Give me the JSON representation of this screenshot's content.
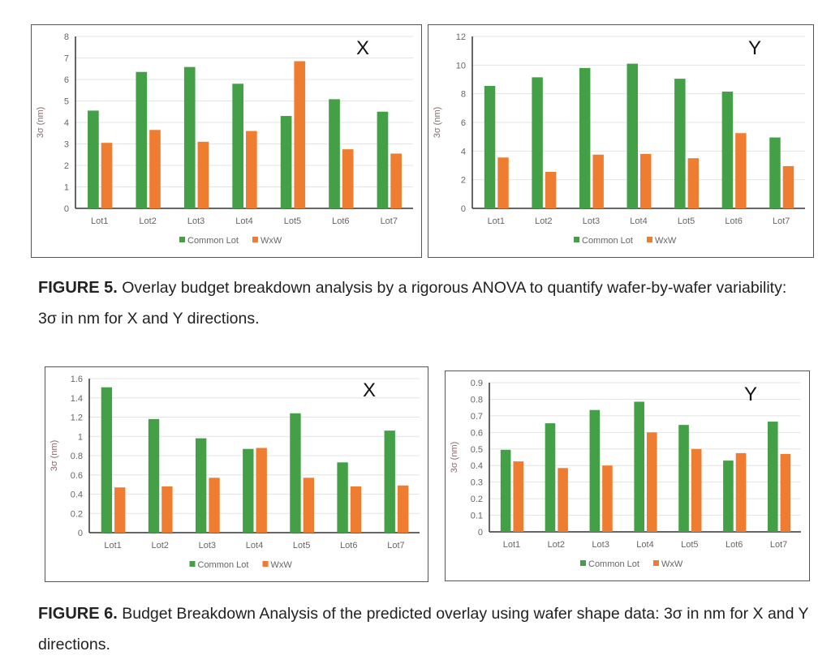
{
  "colors": {
    "common": "#43a047",
    "wxw": "#ee7d31",
    "grid": "#e4e4e4",
    "axis": "#333333",
    "tick_text": "#666666"
  },
  "chart_data": [
    {
      "type": "bar",
      "panel_label": "X",
      "ylabel": "3σ (nm)",
      "ylim": [
        0,
        8
      ],
      "yticks": [
        0,
        1,
        2,
        3,
        4,
        5,
        6,
        7,
        8
      ],
      "categories": [
        "Lot1",
        "Lot2",
        "Lot3",
        "Lot4",
        "Lot5",
        "Lot6",
        "Lot7"
      ],
      "grid": true,
      "legend": "bottom",
      "series": [
        {
          "name": "Common Lot",
          "values": [
            4.55,
            6.35,
            6.58,
            5.8,
            4.3,
            5.08,
            4.5
          ]
        },
        {
          "name": "WxW",
          "values": [
            3.05,
            3.65,
            3.1,
            3.6,
            6.85,
            2.75,
            2.55
          ]
        }
      ]
    },
    {
      "type": "bar",
      "panel_label": "Y",
      "ylabel": "3σ (nm)",
      "ylim": [
        0,
        12
      ],
      "yticks": [
        0,
        2,
        4,
        6,
        8,
        10,
        12
      ],
      "categories": [
        "Lot1",
        "Lot2",
        "Lot3",
        "Lot4",
        "Lot5",
        "Lot6",
        "Lot7"
      ],
      "grid": true,
      "legend": "bottom",
      "series": [
        {
          "name": "Common Lot",
          "values": [
            8.55,
            9.15,
            9.8,
            10.1,
            9.05,
            8.15,
            4.95
          ]
        },
        {
          "name": "WxW",
          "values": [
            3.55,
            2.55,
            3.75,
            3.8,
            3.5,
            5.25,
            2.95
          ]
        }
      ]
    },
    {
      "type": "bar",
      "panel_label": "X",
      "ylabel": "3σ (nm)",
      "ylim": [
        0,
        1.6
      ],
      "yticks": [
        "0",
        "0.2",
        "0.4",
        "0.6",
        "0.8",
        "1",
        "1.2",
        "1.4",
        "1.6"
      ],
      "categories": [
        "Lot1",
        "Lot2",
        "Lot3",
        "Lot4",
        "Lot5",
        "Lot6",
        "Lot7"
      ],
      "grid": true,
      "legend": "bottom",
      "series": [
        {
          "name": "Common Lot",
          "values": [
            1.51,
            1.18,
            0.98,
            0.87,
            1.24,
            0.73,
            1.06
          ]
        },
        {
          "name": "WxW",
          "values": [
            0.47,
            0.48,
            0.57,
            0.88,
            0.57,
            0.48,
            0.49
          ]
        }
      ]
    },
    {
      "type": "bar",
      "panel_label": "Y",
      "ylabel": "3σ (nm)",
      "ylim": [
        0,
        0.9
      ],
      "yticks": [
        "0",
        "0.1",
        "0.2",
        "0.3",
        "0.4",
        "0.5",
        "0.6",
        "0.7",
        "0.8",
        "0.9"
      ],
      "categories": [
        "Lot1",
        "Lot2",
        "Lot3",
        "Lot4",
        "Lot5",
        "Lot6",
        "Lot7"
      ],
      "grid": true,
      "legend": "bottom",
      "series": [
        {
          "name": "Common Lot",
          "values": [
            0.495,
            0.655,
            0.735,
            0.785,
            0.645,
            0.43,
            0.665
          ]
        },
        {
          "name": "WxW",
          "values": [
            0.425,
            0.385,
            0.4,
            0.6,
            0.5,
            0.475,
            0.47
          ]
        }
      ]
    }
  ],
  "captions": {
    "fig5": {
      "label": "FIGURE 5.",
      "text": " Overlay budget breakdown analysis by a rigorous ANOVA to quantify wafer-by-wafer variability: 3σ in nm for X and Y directions."
    },
    "fig6": {
      "label": "FIGURE 6.",
      "text": " Budget Breakdown Analysis of the predicted overlay using wafer shape data: 3σ in nm for X and Y directions."
    }
  }
}
